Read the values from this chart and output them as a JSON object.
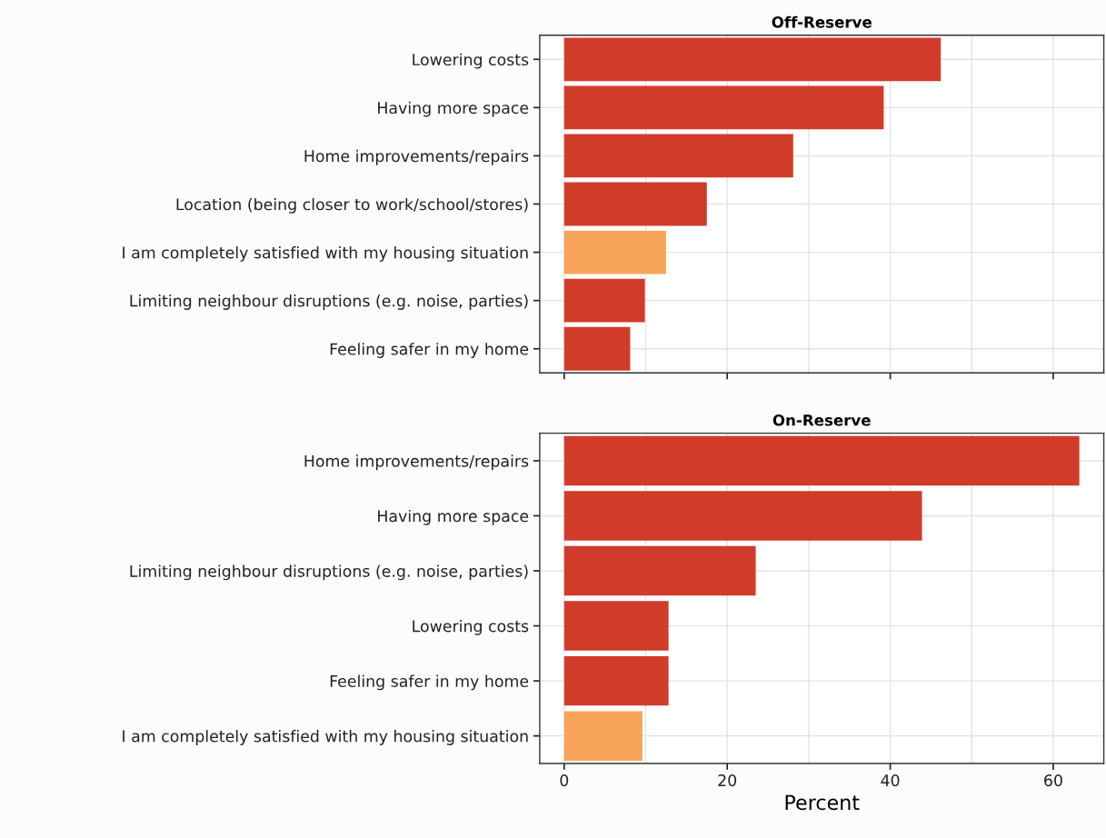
{
  "chart_data": [
    {
      "type": "bar",
      "orientation": "horizontal",
      "title": "Off-Reserve",
      "categories": [
        "Lowering costs",
        "Having more space",
        "Home improvements/repairs",
        "Location (being closer to work/school/stores)",
        "I am completely satisfied with my housing situation",
        "Limiting neighbour disruptions (e.g. noise, parties)",
        "Feeling safer in my home"
      ],
      "values": [
        46.2,
        39.2,
        28.1,
        17.5,
        12.5,
        9.9,
        8.1
      ],
      "colors": [
        "#d13b2a",
        "#d13b2a",
        "#d13b2a",
        "#d13b2a",
        "#f8a55a",
        "#d13b2a",
        "#d13b2a"
      ],
      "xlim": [
        -3,
        66.2
      ],
      "xticks": [
        0,
        {
          "value": 10,
          "label": null
        },
        20,
        {
          "value": 30,
          "label": null
        },
        40,
        {
          "value": 50,
          "label": null
        },
        60
      ],
      "grid": true,
      "tick_labels": "y"
    },
    {
      "type": "bar",
      "orientation": "horizontal",
      "title": "On-Reserve",
      "xlabel": "Percent",
      "categories": [
        "Home improvements/repairs",
        "Having more space",
        "Limiting neighbour disruptions (e.g. noise, parties)",
        "Lowering costs",
        "Feeling safer in my home",
        "I am completely satisfied with my housing situation"
      ],
      "values": [
        63.2,
        43.9,
        23.5,
        12.8,
        12.8,
        9.6
      ],
      "colors": [
        "#d13b2a",
        "#d13b2a",
        "#d13b2a",
        "#d13b2a",
        "#d13b2a",
        "#f8a55a"
      ],
      "xlim": [
        -3,
        66.2
      ],
      "xticks": [
        0,
        {
          "value": 10,
          "label": null
        },
        20,
        {
          "value": 30,
          "label": null
        },
        40,
        {
          "value": 50,
          "label": null
        },
        60
      ],
      "grid": true
    }
  ]
}
